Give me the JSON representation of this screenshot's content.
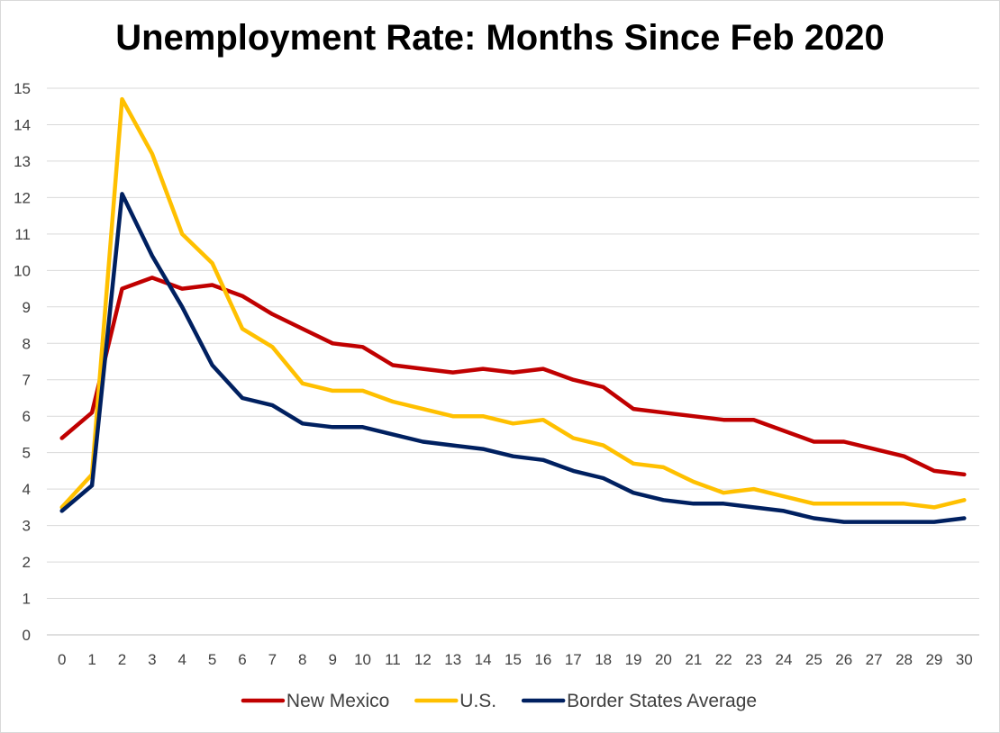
{
  "chart_data": {
    "type": "line",
    "title": "Unemployment Rate: Months Since Feb 2020",
    "xlabel": "",
    "ylabel": "",
    "x": [
      0,
      1,
      2,
      3,
      4,
      5,
      6,
      7,
      8,
      9,
      10,
      11,
      12,
      13,
      14,
      15,
      16,
      17,
      18,
      19,
      20,
      21,
      22,
      23,
      24,
      25,
      26,
      27,
      28,
      29,
      30
    ],
    "ylim": [
      0,
      15
    ],
    "yticks": [
      0,
      1,
      2,
      3,
      4,
      5,
      6,
      7,
      8,
      9,
      10,
      11,
      12,
      13,
      14,
      15
    ],
    "grid": "horizontal",
    "legend_position": "bottom",
    "series": [
      {
        "name": "New Mexico",
        "color": "#c00000",
        "values": [
          5.4,
          6.1,
          9.5,
          9.8,
          9.5,
          9.6,
          9.3,
          8.8,
          8.4,
          8.0,
          7.9,
          7.4,
          7.3,
          7.2,
          7.3,
          7.2,
          7.3,
          7.0,
          6.8,
          6.2,
          6.1,
          6.0,
          5.9,
          5.9,
          5.6,
          5.3,
          5.3,
          5.1,
          4.9,
          4.5,
          4.4
        ]
      },
      {
        "name": "U.S.",
        "color": "#ffc000",
        "values": [
          3.5,
          4.4,
          14.7,
          13.2,
          11.0,
          10.2,
          8.4,
          7.9,
          6.9,
          6.7,
          6.7,
          6.4,
          6.2,
          6.0,
          6.0,
          5.8,
          5.9,
          5.4,
          5.2,
          4.7,
          4.6,
          4.2,
          3.9,
          4.0,
          3.8,
          3.6,
          3.6,
          3.6,
          3.6,
          3.5,
          3.7
        ]
      },
      {
        "name": "Border States Average",
        "color": "#002060",
        "values": [
          3.4,
          4.1,
          12.1,
          10.4,
          9.0,
          7.4,
          6.5,
          6.3,
          5.8,
          5.7,
          5.7,
          5.5,
          5.3,
          5.2,
          5.1,
          4.9,
          4.8,
          4.5,
          4.3,
          3.9,
          3.7,
          3.6,
          3.6,
          3.5,
          3.4,
          3.2,
          3.1,
          3.1,
          3.1,
          3.1,
          3.2
        ]
      }
    ]
  }
}
